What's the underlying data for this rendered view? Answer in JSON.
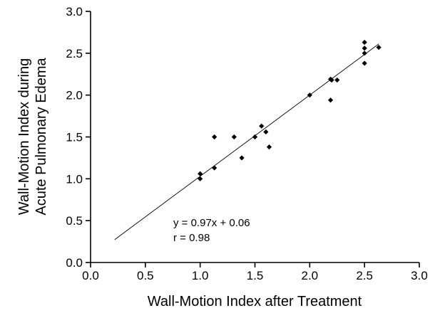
{
  "chart_data": {
    "type": "scatter",
    "xlabel": "Wall-Motion Index after Treatment",
    "ylabel_line1": "Wall-Motion Index during",
    "ylabel_line2": "Acute Pulmonary Edema",
    "xlim": [
      0.0,
      3.0
    ],
    "ylim": [
      0.0,
      3.0
    ],
    "xticks": [
      "0.0",
      "0.5",
      "1.0",
      "1.5",
      "2.0",
      "2.5",
      "3.0"
    ],
    "yticks": [
      "0.0",
      "0.5",
      "1.0",
      "1.5",
      "2.0",
      "2.5",
      "3.0"
    ],
    "grid": false,
    "points": [
      {
        "x": 1.0,
        "y": 1.06
      },
      {
        "x": 1.0,
        "y": 1.0
      },
      {
        "x": 1.13,
        "y": 1.5
      },
      {
        "x": 1.13,
        "y": 1.13
      },
      {
        "x": 1.31,
        "y": 1.5
      },
      {
        "x": 1.38,
        "y": 1.25
      },
      {
        "x": 1.5,
        "y": 1.5
      },
      {
        "x": 1.56,
        "y": 1.63
      },
      {
        "x": 1.6,
        "y": 1.56
      },
      {
        "x": 1.63,
        "y": 1.38
      },
      {
        "x": 2.0,
        "y": 2.0
      },
      {
        "x": 2.19,
        "y": 2.19
      },
      {
        "x": 2.2,
        "y": 2.18
      },
      {
        "x": 2.19,
        "y": 1.94
      },
      {
        "x": 2.25,
        "y": 2.18
      },
      {
        "x": 2.5,
        "y": 2.63
      },
      {
        "x": 2.5,
        "y": 2.56
      },
      {
        "x": 2.5,
        "y": 2.5
      },
      {
        "x": 2.5,
        "y": 2.38
      },
      {
        "x": 2.63,
        "y": 2.57
      }
    ],
    "fit": {
      "slope": 0.97,
      "intercept": 0.06,
      "x_range": [
        0.22,
        2.63
      ]
    },
    "annotations": {
      "equation": "y = 0.97x + 0.06",
      "r": "r = 0.98"
    }
  }
}
